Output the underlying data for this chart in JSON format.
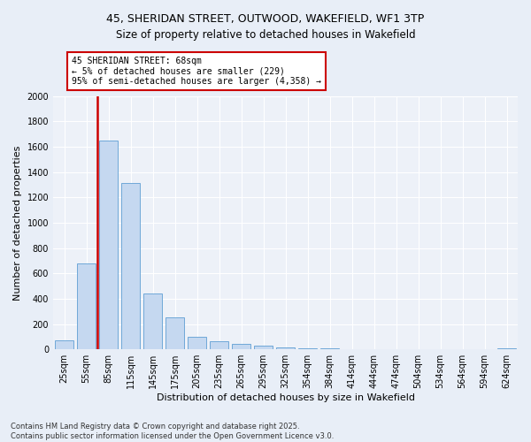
{
  "title_line1": "45, SHERIDAN STREET, OUTWOOD, WAKEFIELD, WF1 3TP",
  "title_line2": "Size of property relative to detached houses in Wakefield",
  "xlabel": "Distribution of detached houses by size in Wakefield",
  "ylabel": "Number of detached properties",
  "categories": [
    "25sqm",
    "55sqm",
    "85sqm",
    "115sqm",
    "145sqm",
    "175sqm",
    "205sqm",
    "235sqm",
    "265sqm",
    "295sqm",
    "325sqm",
    "354sqm",
    "384sqm",
    "414sqm",
    "444sqm",
    "474sqm",
    "504sqm",
    "534sqm",
    "564sqm",
    "594sqm",
    "624sqm"
  ],
  "values": [
    70,
    680,
    1650,
    1310,
    440,
    250,
    100,
    65,
    40,
    30,
    15,
    10,
    5,
    0,
    0,
    0,
    0,
    0,
    0,
    0,
    10
  ],
  "bar_color": "#c5d8f0",
  "bar_edge_color": "#6fa8d8",
  "vline_color": "#cc0000",
  "vline_pos": 1.5,
  "annotation_text": "45 SHERIDAN STREET: 68sqm\n← 5% of detached houses are smaller (229)\n95% of semi-detached houses are larger (4,358) →",
  "annotation_box_color": "#cc0000",
  "ylim": [
    0,
    2000
  ],
  "yticks": [
    0,
    200,
    400,
    600,
    800,
    1000,
    1200,
    1400,
    1600,
    1800,
    2000
  ],
  "footnote_line1": "Contains HM Land Registry data © Crown copyright and database right 2025.",
  "footnote_line2": "Contains public sector information licensed under the Open Government Licence v3.0.",
  "bg_color": "#e8eef7",
  "plot_bg_color": "#edf1f8",
  "title1_fontsize": 9,
  "title2_fontsize": 8.5,
  "xlabel_fontsize": 8,
  "ylabel_fontsize": 8,
  "tick_fontsize": 7,
  "annot_fontsize": 7,
  "footnote_fontsize": 6
}
